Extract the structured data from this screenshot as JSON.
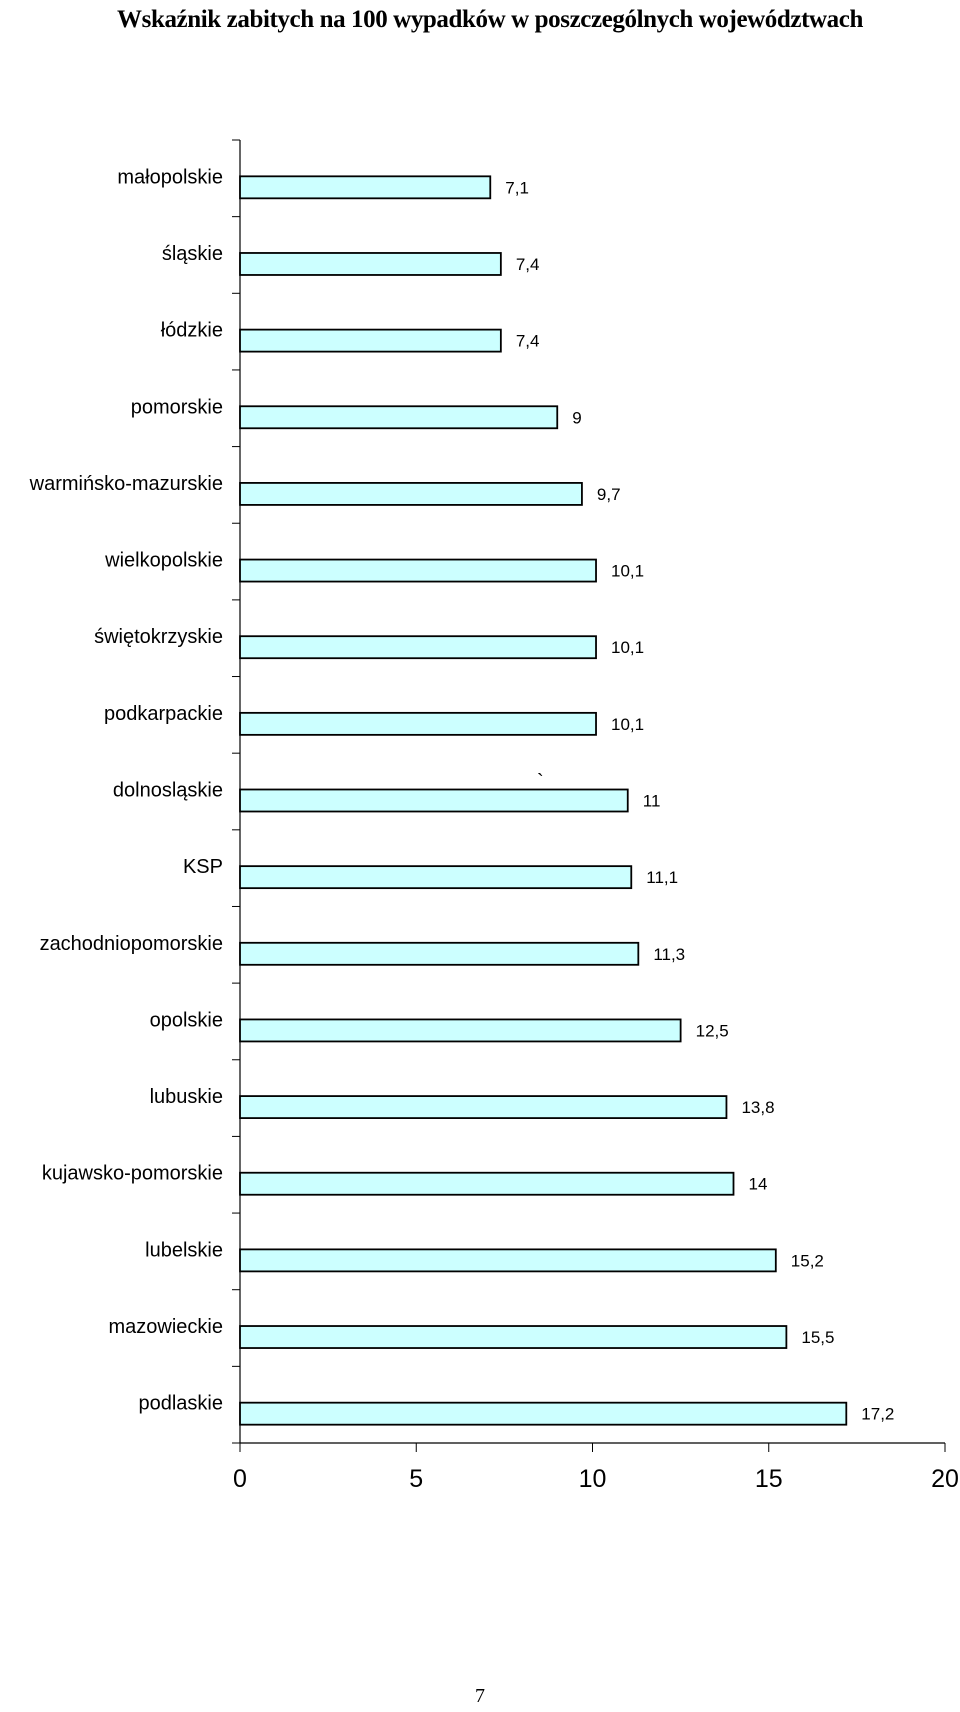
{
  "chart_data": {
    "type": "bar",
    "orientation": "horizontal",
    "title": "Wskaźnik zabitych na 100 wypadków w poszczególnych województwach",
    "categories": [
      "małopolskie",
      "śląskie",
      "łódzkie",
      "pomorskie",
      "warmińsko-mazurskie",
      "wielkopolskie",
      "świętokrzyskie",
      "podkarpackie",
      "dolnosląskie",
      "KSP",
      "zachodniopomorskie",
      "opolskie",
      "lubuskie",
      "kujawsko-pomorskie",
      "lubelskie",
      "mazowieckie",
      "podlaskie"
    ],
    "values": [
      7.1,
      7.4,
      7.4,
      9,
      9.7,
      10.1,
      10.1,
      10.1,
      11,
      11.1,
      11.3,
      12.5,
      13.8,
      14,
      15.2,
      15.5,
      17.2
    ],
    "value_labels": [
      "7,1",
      "7,4",
      "7,4",
      "9",
      "9,7",
      "10,1",
      "10,1",
      "10,1",
      "11",
      "11,1",
      "11,3",
      "12,5",
      "13,8",
      "14",
      "15,2",
      "15,5",
      "17,2"
    ],
    "x_ticks": [
      0,
      5,
      10,
      15,
      20
    ],
    "x_tick_labels": [
      "0",
      "5",
      "10",
      "15",
      "20"
    ],
    "xlim": [
      0,
      20
    ],
    "xlabel": "",
    "ylabel": "",
    "grid": false,
    "legend": "none",
    "bar_fill_color": "#ccffff",
    "bar_edge_color": "#000000",
    "stray_mark": "`"
  },
  "page_number": "7"
}
